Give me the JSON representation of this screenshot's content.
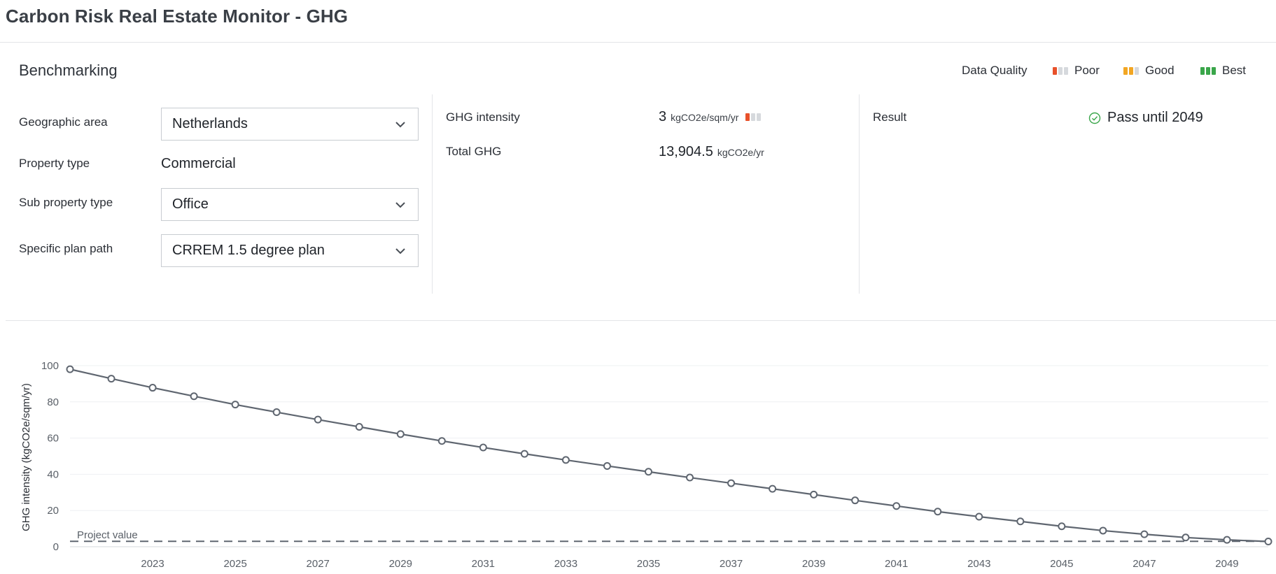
{
  "app": {
    "title": "Carbon Risk Real Estate Monitor - GHG"
  },
  "benchmarking": {
    "title": "Benchmarking",
    "data_quality": {
      "label": "Data Quality",
      "levels": [
        {
          "label": "Poor",
          "color": "#e8512a",
          "filled": 1
        },
        {
          "label": "Good",
          "color": "#f2a623",
          "filled": 2
        },
        {
          "label": "Best",
          "color": "#3aa64a",
          "filled": 3
        }
      ]
    },
    "form": {
      "geographic_area": {
        "label": "Geographic area",
        "value": "Netherlands"
      },
      "property_type": {
        "label": "Property type",
        "value": "Commercial"
      },
      "sub_property_type": {
        "label": "Sub property type",
        "value": "Office"
      },
      "specific_plan_path": {
        "label": "Specific plan path",
        "value": "CRREM 1.5 degree plan"
      }
    },
    "metrics": {
      "ghg_intensity": {
        "label": "GHG intensity",
        "value": "3",
        "unit": "kgCO2e/sqm/yr",
        "quality_filled": 1,
        "quality_color": "#e8512a"
      },
      "total_ghg": {
        "label": "Total GHG",
        "value": "13,904.5",
        "unit": "kgCO2e/yr"
      }
    },
    "result": {
      "label": "Result",
      "value": "Pass until 2049",
      "status_color": "#3aa64a"
    }
  },
  "chart_data": {
    "type": "line",
    "ylabel": "GHG intensity (kgCO2e/sqm/yr)",
    "xlabel": "",
    "ylim": [
      0,
      105
    ],
    "xlim": [
      2021,
      2050
    ],
    "yticks": [
      0,
      20,
      40,
      60,
      80,
      100
    ],
    "xticks": [
      2023,
      2025,
      2027,
      2029,
      2031,
      2033,
      2035,
      2037,
      2039,
      2041,
      2043,
      2045,
      2047,
      2049
    ],
    "grid": true,
    "x": [
      2021,
      2022,
      2023,
      2024,
      2025,
      2026,
      2027,
      2028,
      2029,
      2030,
      2031,
      2032,
      2033,
      2034,
      2035,
      2036,
      2037,
      2038,
      2039,
      2040,
      2041,
      2042,
      2043,
      2044,
      2045,
      2046,
      2047,
      2048,
      2049,
      2050
    ],
    "series": [
      {
        "values": [
          98.0,
          92.8,
          87.8,
          83.1,
          78.5,
          74.3,
          70.2,
          66.2,
          62.2,
          58.4,
          54.8,
          51.3,
          47.9,
          44.6,
          41.4,
          38.2,
          35.1,
          32.0,
          28.8,
          25.6,
          22.5,
          19.4,
          16.6,
          14.0,
          11.3,
          8.9,
          6.9,
          5.1,
          3.8,
          2.9
        ],
        "color": "#5f6670"
      }
    ],
    "reference_line": {
      "label": "Project value",
      "value": 3
    }
  }
}
